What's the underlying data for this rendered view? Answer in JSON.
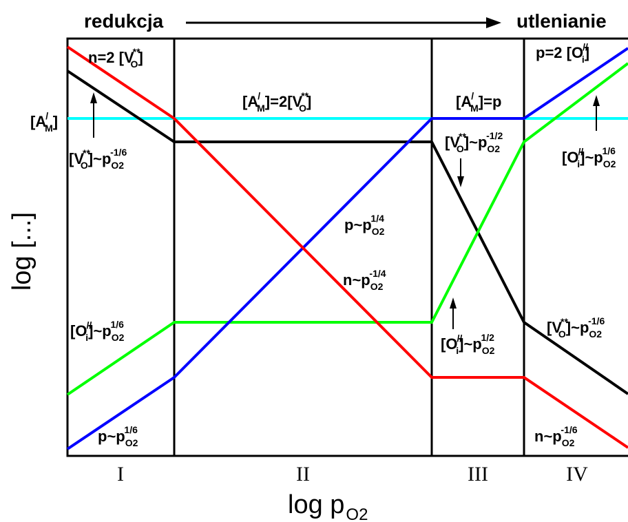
{
  "header": {
    "left": "redukcja",
    "right": "utlenianie"
  },
  "axes": {
    "xlabel_main": "log p",
    "xlabel_sub": "O2",
    "ylabel": "log [...]"
  },
  "regions": [
    "I",
    "II",
    "III",
    "IV"
  ],
  "colors": {
    "red": "#ff0000",
    "black": "#000000",
    "blue": "#0000ff",
    "green": "#00ff00",
    "cyan": "#00ffff"
  },
  "labels": {
    "acceptor_left": {
      "a": "[A",
      "sup": "/",
      "sub": "M",
      "b": "]"
    },
    "n2_vo": {
      "a": "n=2 [V",
      "sup": "**",
      "sub": "O",
      "b": "]"
    },
    "p2_oi": {
      "a": "p=2 [O",
      "sup": "//",
      "sub": "i",
      "b": "]"
    },
    "am_eq_2vo": {
      "a": "[A",
      "sup1": "/",
      "sub1": "M",
      "mid": "]=2[V",
      "sup2": "**",
      "sub2": "O",
      "b": "]"
    },
    "am_eq_p": {
      "a": "[A",
      "sup": "/",
      "sub": "M",
      "b": "]=p"
    },
    "vo_m16_left": {
      "a": "[V",
      "sup1": "**",
      "sub1": "O",
      "mid": "]~p",
      "sub2": "O2",
      "sup2": "-1/6"
    },
    "vo_m12": {
      "a": "[V",
      "sup1": "**",
      "sub1": "O",
      "mid": "]~p",
      "sub2": "O2",
      "sup2": "-1/2"
    },
    "oi_16_right": {
      "a": "[O",
      "sup1": "//",
      "sub1": "i",
      "mid": "]~p",
      "sub2": "O2",
      "sup2": "1/6"
    },
    "p_14": {
      "a": "p~p",
      "sub": "O2",
      "sup": "1/4"
    },
    "n_m14": {
      "a": "n~p",
      "sub": "O2",
      "sup": "-1/4"
    },
    "oi_16_left": {
      "a": "[O",
      "sup1": "//",
      "sub1": "i",
      "mid": "]~p",
      "sub2": "O2",
      "sup2": "1/6"
    },
    "oi_12": {
      "a": "[O",
      "sup1": "//",
      "sub1": "i",
      "mid": "]~p",
      "sub2": "O2",
      "sup2": "1/2"
    },
    "vo_m16_right": {
      "a": "[V",
      "sup1": "**",
      "sub1": "O",
      "mid": "]~p",
      "sub2": "O2",
      "sup2": "-1/6"
    },
    "p_16": {
      "a": "p~p",
      "sub": "O2",
      "sup": "1/6"
    },
    "n_m16": {
      "a": "n~p",
      "sub": "O2",
      "sup": "-1/6"
    }
  }
}
